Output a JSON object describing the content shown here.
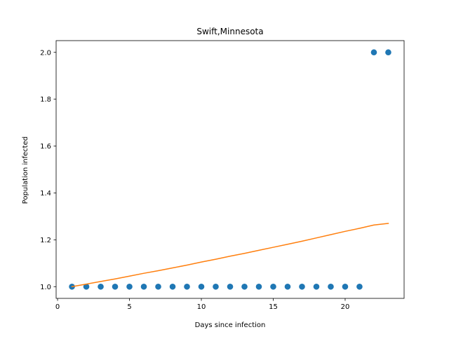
{
  "chart_data": {
    "type": "scatter",
    "title": "Swift,Minnesota",
    "xlabel": "Days since infection",
    "ylabel": "Population infected",
    "xlim": [
      -0.1,
      24.1
    ],
    "ylim": [
      0.95,
      2.05
    ],
    "xticks": [
      0,
      5,
      10,
      15,
      20
    ],
    "yticks": [
      1.0,
      1.2,
      1.4,
      1.6,
      1.8,
      2.0
    ],
    "ytick_labels": [
      "1.0",
      "1.2",
      "1.4",
      "1.6",
      "1.8",
      "2.0"
    ],
    "grid": false,
    "legend": "none",
    "series": [
      {
        "kind": "scatter",
        "color": "#1f77b4",
        "x": [
          1,
          2,
          3,
          4,
          5,
          6,
          7,
          8,
          9,
          10,
          11,
          12,
          13,
          14,
          15,
          16,
          17,
          18,
          19,
          20,
          21,
          22,
          23
        ],
        "y": [
          1,
          1,
          1,
          1,
          1,
          1,
          1,
          1,
          1,
          1,
          1,
          1,
          1,
          1,
          1,
          1,
          1,
          1,
          1,
          1,
          1,
          2,
          2
        ]
      },
      {
        "kind": "line",
        "color": "#ff7f0e",
        "x": [
          1,
          2,
          3,
          4,
          5,
          6,
          7,
          8,
          9,
          10,
          11,
          12,
          13,
          14,
          15,
          16,
          17,
          18,
          19,
          20,
          21,
          22,
          23
        ],
        "y": [
          1.0,
          1.011,
          1.022,
          1.033,
          1.045,
          1.057,
          1.068,
          1.08,
          1.092,
          1.105,
          1.117,
          1.13,
          1.142,
          1.155,
          1.168,
          1.181,
          1.194,
          1.208,
          1.222,
          1.236,
          1.249,
          1.263,
          1.27
        ]
      }
    ]
  }
}
